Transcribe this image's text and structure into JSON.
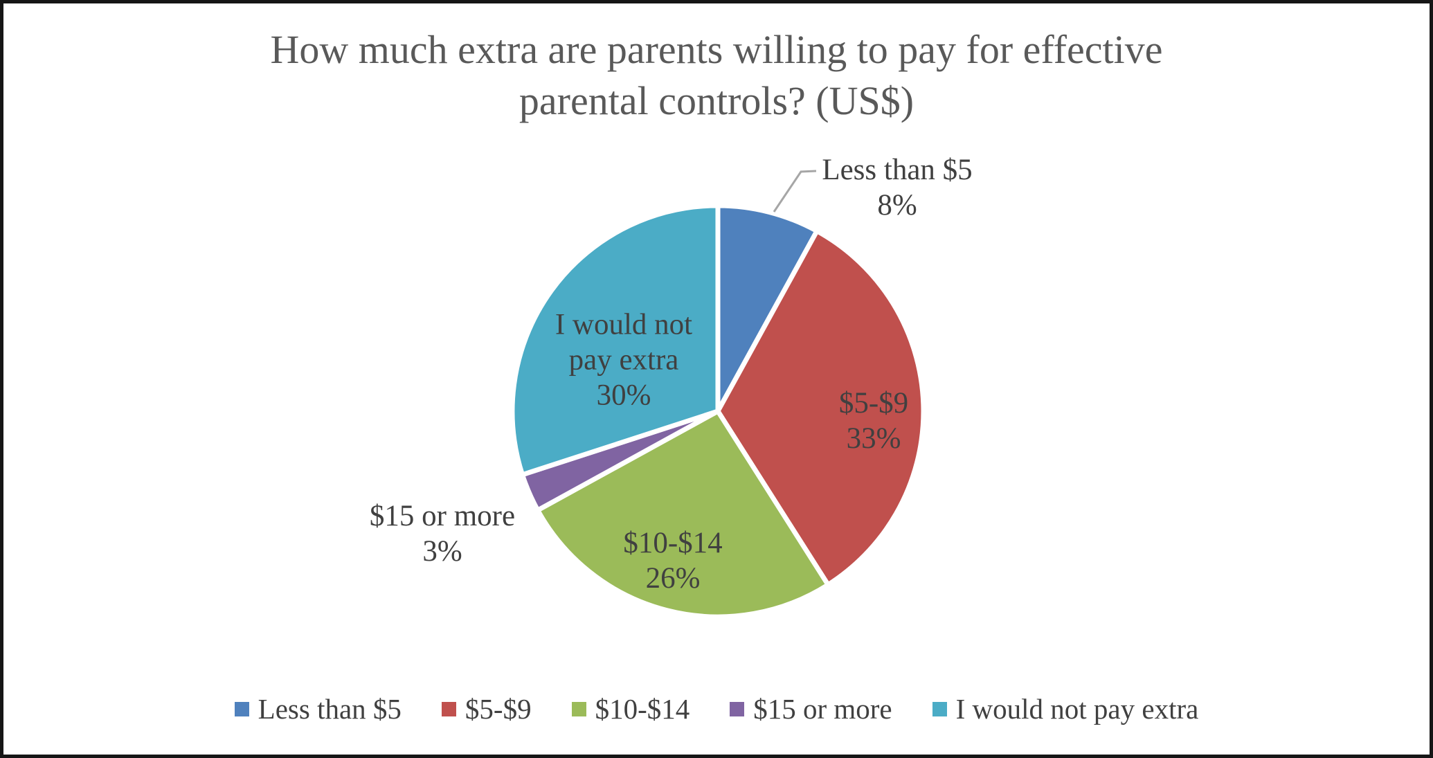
{
  "chart_data": {
    "type": "pie",
    "title": "How much extra are parents willing to pay for effective parental controls? (US$)",
    "title_lines": [
      "How much extra are parents willing to pay for effective",
      "parental controls? (US$)"
    ],
    "categories": [
      "Less than $5",
      "$5-$9",
      "$10-$14",
      "$15 or more",
      "I would not pay extra"
    ],
    "values": [
      8,
      33,
      26,
      3,
      30
    ],
    "unit": "percent",
    "legend_position": "bottom",
    "slices": [
      {
        "label": "Less than $5",
        "pct": 8,
        "color": "#4F81BD",
        "label_lines": [
          "Less than $5",
          "8%"
        ],
        "label_placement": "outside-callout"
      },
      {
        "label": "$5-$9",
        "pct": 33,
        "color": "#C0504D",
        "label_lines": [
          "$5-$9",
          "33%"
        ],
        "label_placement": "inside"
      },
      {
        "label": "$10-$14",
        "pct": 26,
        "color": "#9BBB59",
        "label_lines": [
          "$10-$14",
          "26%"
        ],
        "label_placement": "inside"
      },
      {
        "label": "$15 or more",
        "pct": 3,
        "color": "#8064A2",
        "label_lines": [
          "$15 or more",
          "3%"
        ],
        "label_placement": "outside"
      },
      {
        "label": "I would not pay extra",
        "pct": 30,
        "color": "#4BACC6",
        "label_lines": [
          "I would not",
          "pay extra",
          "30%"
        ],
        "label_placement": "inside"
      }
    ],
    "colors": {
      "title_text": "#595959",
      "label_text": "#404040",
      "leader_line": "#A6A6A6",
      "slice_border": "#FFFFFF",
      "frame_border": "#161616",
      "background": "#FFFFFF"
    }
  }
}
